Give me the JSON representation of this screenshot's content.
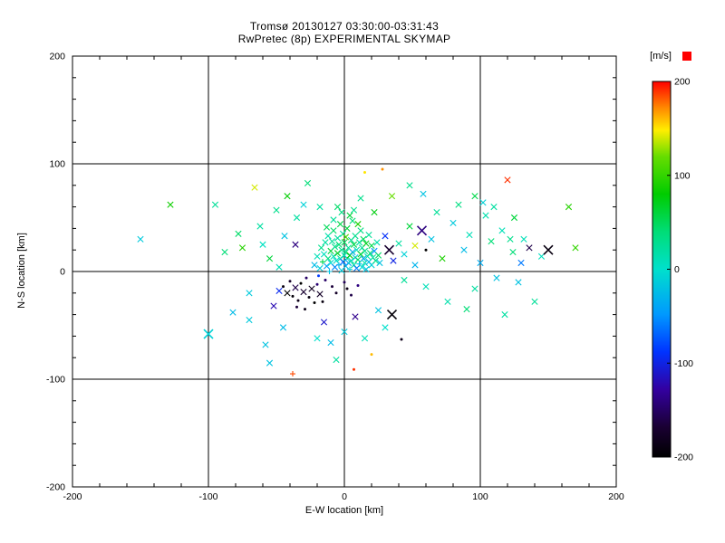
{
  "chart_data": {
    "type": "scatter",
    "title": "Tromsø 20130127 03:30:00-03:31:43",
    "subtitle": "RwPretec (8p) EXPERIMENTAL SKYMAP",
    "xlabel": "E-W location [km]",
    "ylabel": "N-S location [km]",
    "xlim": [
      -200,
      200
    ],
    "ylim": [
      -200,
      200
    ],
    "xticks": [
      -200,
      -100,
      0,
      100,
      200
    ],
    "yticks": [
      -200,
      -100,
      0,
      100,
      200
    ],
    "minor_tick_step": 20,
    "grid": true,
    "background": "#ffffff",
    "axis_color": "#000000",
    "colorbar": {
      "label": "[m/s]",
      "min": -200,
      "max": 200,
      "ticks": [
        200,
        100,
        0,
        -100,
        -200
      ],
      "stops": [
        {
          "t": 0.0,
          "c": "#000000"
        },
        {
          "t": 0.08,
          "c": "#1a0033"
        },
        {
          "t": 0.18,
          "c": "#3300a0"
        },
        {
          "t": 0.28,
          "c": "#0033ff"
        },
        {
          "t": 0.38,
          "c": "#0099ff"
        },
        {
          "t": 0.5,
          "c": "#00e0cc"
        },
        {
          "t": 0.6,
          "c": "#00dd77"
        },
        {
          "t": 0.7,
          "c": "#00cc00"
        },
        {
          "t": 0.8,
          "c": "#66dd00"
        },
        {
          "t": 0.87,
          "c": "#ffee00"
        },
        {
          "t": 0.93,
          "c": "#ff8800"
        },
        {
          "t": 1.0,
          "c": "#ff0000"
        }
      ]
    },
    "points": [
      [
        -22,
        6,
        -25,
        "x"
      ],
      [
        -20,
        14,
        10,
        "x"
      ],
      [
        -19,
        -4,
        -85,
        "."
      ],
      [
        -18,
        3,
        -12,
        "x"
      ],
      [
        -17,
        22,
        30,
        "x"
      ],
      [
        -16,
        9,
        55,
        "+"
      ],
      [
        -15,
        16,
        5,
        "x"
      ],
      [
        -14,
        -8,
        -150,
        "."
      ],
      [
        -14,
        27,
        20,
        "x"
      ],
      [
        -13,
        5,
        -40,
        "x"
      ],
      [
        -12,
        12,
        35,
        "x"
      ],
      [
        -12,
        33,
        15,
        "x"
      ],
      [
        -11,
        0,
        -20,
        "+"
      ],
      [
        -10,
        19,
        60,
        "x"
      ],
      [
        -10,
        8,
        -5,
        "x"
      ],
      [
        -9,
        28,
        25,
        "x"
      ],
      [
        -9,
        -14,
        -165,
        "."
      ],
      [
        -8,
        14,
        10,
        "x"
      ],
      [
        -8,
        38,
        45,
        "x"
      ],
      [
        -7,
        4,
        -55,
        "x"
      ],
      [
        -7,
        23,
        30,
        "x"
      ],
      [
        -6,
        10,
        0,
        "x"
      ],
      [
        -6,
        -20,
        -175,
        "."
      ],
      [
        -5,
        17,
        70,
        "x"
      ],
      [
        -5,
        31,
        20,
        "x"
      ],
      [
        -4,
        6,
        -30,
        "+"
      ],
      [
        -4,
        25,
        40,
        "x"
      ],
      [
        -3,
        12,
        15,
        "x"
      ],
      [
        -3,
        44,
        55,
        "x"
      ],
      [
        -2,
        1,
        -15,
        "x"
      ],
      [
        -2,
        20,
        30,
        "x"
      ],
      [
        -1,
        9,
        -70,
        "x"
      ],
      [
        -1,
        35,
        20,
        "x"
      ],
      [
        0,
        15,
        10,
        "x"
      ],
      [
        0,
        27,
        50,
        "x"
      ],
      [
        0,
        -10,
        -155,
        "."
      ],
      [
        1,
        5,
        -25,
        "x"
      ],
      [
        1,
        18,
        35,
        "x"
      ],
      [
        2,
        12,
        5,
        "x"
      ],
      [
        2,
        40,
        60,
        "x"
      ],
      [
        2,
        -16,
        -185,
        "."
      ],
      [
        3,
        8,
        -45,
        "x"
      ],
      [
        3,
        22,
        25,
        "x"
      ],
      [
        4,
        15,
        80,
        "x"
      ],
      [
        4,
        2,
        -10,
        "+"
      ],
      [
        5,
        29,
        30,
        "x"
      ],
      [
        5,
        10,
        15,
        "x"
      ],
      [
        5,
        -22,
        -160,
        "."
      ],
      [
        6,
        18,
        -35,
        "x"
      ],
      [
        6,
        47,
        40,
        "x"
      ],
      [
        7,
        6,
        20,
        "x"
      ],
      [
        7,
        25,
        55,
        "x"
      ],
      [
        8,
        13,
        -15,
        "x"
      ],
      [
        8,
        33,
        30,
        "x"
      ],
      [
        9,
        3,
        -60,
        "x"
      ],
      [
        9,
        20,
        10,
        "x"
      ],
      [
        10,
        11,
        45,
        "x"
      ],
      [
        10,
        -13,
        -140,
        "."
      ],
      [
        11,
        27,
        20,
        "x"
      ],
      [
        11,
        7,
        -25,
        "+"
      ],
      [
        12,
        16,
        65,
        "x"
      ],
      [
        12,
        38,
        35,
        "x"
      ],
      [
        13,
        4,
        -5,
        "x"
      ],
      [
        13,
        22,
        25,
        "x"
      ],
      [
        14,
        12,
        -40,
        "x"
      ],
      [
        14,
        30,
        50,
        "x"
      ],
      [
        15,
        8,
        15,
        "x"
      ],
      [
        15,
        19,
        30,
        "x"
      ],
      [
        16,
        2,
        -20,
        "x"
      ],
      [
        16,
        26,
        70,
        "x"
      ],
      [
        17,
        14,
        10,
        "x"
      ],
      [
        18,
        9,
        -30,
        "x"
      ],
      [
        18,
        34,
        25,
        "x"
      ],
      [
        19,
        17,
        40,
        "x"
      ],
      [
        20,
        6,
        -10,
        "x"
      ],
      [
        20,
        24,
        55,
        "x"
      ],
      [
        21,
        13,
        20,
        "x"
      ],
      [
        22,
        19,
        -50,
        "x"
      ],
      [
        23,
        10,
        30,
        "x"
      ],
      [
        24,
        27,
        15,
        "x"
      ],
      [
        25,
        15,
        45,
        "x"
      ],
      [
        26,
        8,
        -20,
        "x"
      ],
      [
        -2,
        55,
        35,
        "x"
      ],
      [
        4,
        52,
        60,
        "x"
      ],
      [
        -8,
        48,
        25,
        "x"
      ],
      [
        10,
        44,
        90,
        "x"
      ],
      [
        -13,
        41,
        50,
        "x"
      ],
      [
        7,
        57,
        30,
        "x"
      ],
      [
        -5,
        60,
        45,
        "x"
      ],
      [
        1,
        32,
        110,
        "x"
      ],
      [
        -45,
        -14,
        -190,
        "."
      ],
      [
        -42,
        -20,
        -200,
        "x"
      ],
      [
        -40,
        -9,
        -175,
        "."
      ],
      [
        -38,
        -23,
        -195,
        "."
      ],
      [
        -36,
        -15,
        -160,
        "x"
      ],
      [
        -34,
        -27,
        -185,
        "."
      ],
      [
        -32,
        -11,
        -200,
        "."
      ],
      [
        -30,
        -19,
        -170,
        "x"
      ],
      [
        -28,
        -6,
        -150,
        "."
      ],
      [
        -26,
        -24,
        -190,
        "."
      ],
      [
        -24,
        -16,
        -180,
        "x"
      ],
      [
        -22,
        -29,
        -200,
        "."
      ],
      [
        -20,
        -12,
        -145,
        "."
      ],
      [
        -18,
        -21,
        -175,
        "x"
      ],
      [
        -16,
        -28,
        -190,
        "."
      ],
      [
        -35,
        -33,
        -165,
        "."
      ],
      [
        -29,
        -35,
        -185,
        "."
      ],
      [
        -150,
        30,
        -15,
        "x"
      ],
      [
        -128,
        62,
        85,
        "x"
      ],
      [
        -100,
        -58,
        -10,
        "X"
      ],
      [
        -88,
        18,
        40,
        "x"
      ],
      [
        -82,
        -38,
        -25,
        "x"
      ],
      [
        -75,
        22,
        95,
        "x"
      ],
      [
        -70,
        -45,
        -15,
        "x"
      ],
      [
        -66,
        78,
        140,
        "x"
      ],
      [
        -62,
        42,
        20,
        "x"
      ],
      [
        -58,
        -68,
        -20,
        "x"
      ],
      [
        -55,
        12,
        60,
        "x"
      ],
      [
        -52,
        -32,
        -120,
        "x"
      ],
      [
        -50,
        57,
        30,
        "x"
      ],
      [
        -48,
        4,
        10,
        "x"
      ],
      [
        -45,
        -52,
        -25,
        "x"
      ],
      [
        -42,
        70,
        80,
        "x"
      ],
      [
        -38,
        -95,
        185,
        "+"
      ],
      [
        -35,
        50,
        20,
        "x"
      ],
      [
        -30,
        62,
        -10,
        "x"
      ],
      [
        -27,
        82,
        40,
        "x"
      ],
      [
        -55,
        -85,
        -20,
        "x"
      ],
      [
        -20,
        -62,
        0,
        "x"
      ],
      [
        -15,
        -47,
        -110,
        "x"
      ],
      [
        -10,
        -66,
        -25,
        "x"
      ],
      [
        -6,
        -82,
        20,
        "x"
      ],
      [
        0,
        -56,
        -15,
        "x"
      ],
      [
        8,
        -42,
        -135,
        "x"
      ],
      [
        15,
        -62,
        10,
        "x"
      ],
      [
        20,
        -77,
        160,
        "."
      ],
      [
        25,
        -36,
        -20,
        "x"
      ],
      [
        30,
        -52,
        0,
        "x"
      ],
      [
        42,
        -63,
        -185,
        "."
      ],
      [
        35,
        -40,
        -195,
        "X"
      ],
      [
        36,
        10,
        -100,
        "x"
      ],
      [
        40,
        26,
        20,
        "x"
      ],
      [
        44,
        16,
        -10,
        "x"
      ],
      [
        48,
        42,
        60,
        "x"
      ],
      [
        52,
        6,
        -30,
        "x"
      ],
      [
        57,
        38,
        -140,
        "X"
      ],
      [
        60,
        -14,
        10,
        "x"
      ],
      [
        64,
        30,
        -20,
        "x"
      ],
      [
        68,
        55,
        25,
        "x"
      ],
      [
        72,
        12,
        90,
        "x"
      ],
      [
        76,
        -28,
        15,
        "x"
      ],
      [
        80,
        45,
        -15,
        "x"
      ],
      [
        84,
        62,
        35,
        "x"
      ],
      [
        88,
        20,
        -25,
        "x"
      ],
      [
        92,
        34,
        10,
        "x"
      ],
      [
        96,
        -16,
        20,
        "x"
      ],
      [
        100,
        8,
        -35,
        "x"
      ],
      [
        104,
        52,
        15,
        "x"
      ],
      [
        108,
        28,
        40,
        "x"
      ],
      [
        112,
        -6,
        -20,
        "x"
      ],
      [
        116,
        38,
        10,
        "x"
      ],
      [
        120,
        85,
        190,
        "x"
      ],
      [
        124,
        18,
        40,
        "x"
      ],
      [
        128,
        -10,
        -20,
        "x"
      ],
      [
        132,
        30,
        10,
        "x"
      ],
      [
        136,
        22,
        -160,
        "x"
      ],
      [
        140,
        -28,
        25,
        "x"
      ],
      [
        145,
        14,
        5,
        "x"
      ],
      [
        150,
        20,
        -190,
        "X"
      ],
      [
        165,
        60,
        95,
        "x"
      ],
      [
        170,
        22,
        100,
        "x"
      ],
      [
        35,
        70,
        120,
        "x"
      ],
      [
        28,
        95,
        170,
        "."
      ],
      [
        15,
        92,
        150,
        "."
      ],
      [
        48,
        80,
        30,
        "x"
      ],
      [
        58,
        72,
        -20,
        "x"
      ],
      [
        -95,
        62,
        25,
        "x"
      ],
      [
        118,
        -40,
        20,
        "x"
      ],
      [
        125,
        50,
        60,
        "x"
      ],
      [
        130,
        8,
        -60,
        "x"
      ],
      [
        7,
        -91,
        190,
        "."
      ],
      [
        -70,
        -20,
        -15,
        "x"
      ],
      [
        -78,
        35,
        45,
        "x"
      ],
      [
        96,
        70,
        55,
        "x"
      ],
      [
        102,
        64,
        -10,
        "x"
      ],
      [
        110,
        60,
        20,
        "x"
      ],
      [
        122,
        30,
        30,
        "x"
      ],
      [
        60,
        20,
        -200,
        "."
      ],
      [
        30,
        33,
        -90,
        "x"
      ],
      [
        33,
        20,
        -170,
        "X"
      ],
      [
        44,
        -8,
        25,
        "x"
      ],
      [
        52,
        24,
        140,
        "x"
      ],
      [
        -60,
        25,
        5,
        "x"
      ],
      [
        -44,
        33,
        -20,
        "x"
      ],
      [
        -36,
        25,
        -140,
        "x"
      ],
      [
        -48,
        -18,
        -95,
        "x"
      ],
      [
        12,
        68,
        30,
        "x"
      ],
      [
        -18,
        60,
        20,
        "x"
      ],
      [
        22,
        55,
        75,
        "x"
      ],
      [
        90,
        -35,
        40,
        "x"
      ]
    ]
  }
}
